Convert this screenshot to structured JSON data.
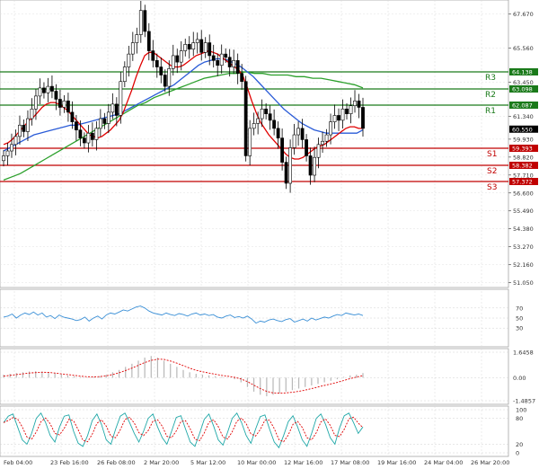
{
  "chart_data": {
    "type": "candlestick",
    "price_axis": {
      "ylim": [
        50.97,
        68.1
      ],
      "ticks": [
        "67.670",
        "65.560",
        "63.450",
        "61.340",
        "59.930",
        "58.820",
        "57.710",
        "56.600",
        "55.490",
        "54.380",
        "53.270",
        "52.160",
        "51.050"
      ]
    },
    "x_ticks": [
      "Feb 04:00",
      "23 Feb 16:00",
      "26 Feb 08:00",
      "2 Mar 20:00",
      "5 Mar 12:00",
      "10 Mar 00:00",
      "12 Mar 16:00",
      "17 Mar 08:00",
      "19 Mar 16:00",
      "24 Mar 04:00",
      "26 Mar 20:00"
    ],
    "levels": [
      {
        "name": "R3",
        "value": 64.138,
        "label": "64.138",
        "color": "#1a7a1a"
      },
      {
        "name": "R2",
        "value": 63.098,
        "label": "63.098",
        "color": "#1a7a1a"
      },
      {
        "name": "R1",
        "value": 62.087,
        "label": "62.087",
        "color": "#1a7a1a"
      },
      {
        "name": "S1",
        "value": 59.393,
        "label": "59.393",
        "color": "#c00000"
      },
      {
        "name": "S2",
        "value": 58.382,
        "label": "58.382",
        "color": "#c00000"
      },
      {
        "name": "S3",
        "value": 57.372,
        "label": "57.372",
        "color": "#c00000"
      }
    ],
    "current_price": "60.550",
    "closes": [
      58.9,
      59.2,
      59.6,
      60.1,
      60.8,
      60.4,
      61.2,
      61.8,
      62.6,
      63.1,
      62.8,
      63.2,
      62.9,
      62.4,
      61.9,
      62.3,
      61.6,
      61.0,
      60.5,
      60.0,
      59.7,
      60.3,
      59.9,
      60.6,
      61.2,
      60.9,
      61.6,
      62.1,
      61.4,
      63.5,
      64.4,
      65.2,
      65.9,
      66.4,
      67.9,
      66.6,
      65.4,
      64.8,
      64.4,
      63.9,
      63.2,
      64.3,
      65.1,
      64.7,
      65.4,
      65.8,
      65.5,
      65.9,
      66.1,
      65.3,
      65.9,
      65.1,
      64.8,
      64.5,
      65.2,
      65.0,
      64.4,
      64.8,
      64.0,
      63.5,
      58.9,
      60.6,
      60.9,
      61.2,
      61.8,
      61.5,
      61.1,
      60.6,
      60.0,
      58.5,
      57.2,
      59.4,
      60.2,
      60.6,
      59.9,
      58.9,
      57.7,
      58.8,
      59.6,
      59.8,
      60.2,
      61.0,
      61.4,
      61.1,
      61.8,
      61.5,
      62.0,
      62.3,
      61.9,
      60.6
    ],
    "sma_fast": [
      59.6,
      59.7,
      59.9,
      60.2,
      60.5,
      60.8,
      61.1,
      61.3,
      61.6,
      61.9,
      62.1,
      62.2,
      62.2,
      62.1,
      61.9,
      61.7,
      61.4,
      61.1,
      60.8,
      60.5,
      60.2,
      60.1,
      60.0,
      60.1,
      60.3,
      60.5,
      60.8,
      61.1,
      61.6,
      62.3,
      63.0,
      63.8,
      64.5,
      65.1,
      65.3,
      65.3,
      65.1,
      64.9,
      64.7,
      64.5,
      64.4,
      64.4,
      64.5,
      64.7,
      64.9,
      65.1,
      65.2,
      65.3,
      65.4,
      65.3,
      65.2,
      65.0,
      64.8,
      64.6,
      64.4,
      64.2,
      63.8,
      63.1,
      62.3,
      61.6,
      61.0,
      60.6,
      60.2,
      59.9,
      59.6,
      59.3,
      59.0,
      58.8,
      58.7,
      58.7,
      58.8,
      59.0,
      59.2,
      59.4,
      59.5,
      59.6,
      59.8,
      60.0,
      60.2,
      60.4,
      60.6,
      60.7,
      60.7,
      60.6,
      60.6
    ],
    "sma_mid": [
      59.2,
      59.4,
      59.6,
      59.8,
      60.0,
      60.2,
      60.3,
      60.4,
      60.5,
      60.6,
      60.7,
      60.8,
      60.8,
      60.9,
      61.0,
      61.1,
      61.2,
      61.3,
      61.4,
      61.5,
      61.7,
      61.9,
      62.1,
      62.3,
      62.5,
      62.7,
      62.9,
      63.1,
      63.3,
      63.6,
      63.9,
      64.2,
      64.5,
      64.7,
      64.8,
      64.9,
      64.9,
      64.8,
      64.6,
      64.4,
      64.1,
      63.8,
      63.4,
      63.0,
      62.6,
      62.2,
      61.8,
      61.5,
      61.2,
      60.9,
      60.7,
      60.5,
      60.4,
      60.3,
      60.3,
      60.3,
      60.3,
      60.3,
      60.3,
      60.5
    ],
    "sma_slow": [
      57.4,
      57.6,
      57.8,
      58.1,
      58.4,
      58.7,
      59.0,
      59.3,
      59.6,
      59.9,
      60.2,
      60.5,
      60.8,
      61.1,
      61.4,
      61.7,
      62.0,
      62.2,
      62.5,
      62.7,
      62.9,
      63.1,
      63.3,
      63.5,
      63.7,
      63.8,
      63.9,
      64.0,
      64.0,
      64.1,
      64.0,
      64.0,
      63.9,
      63.9,
      63.9,
      63.8,
      63.8,
      63.7,
      63.7,
      63.6,
      63.5,
      63.4,
      63.3,
      63.1
    ],
    "rsi": {
      "ylim": [
        0,
        100
      ],
      "ticks": [
        "70",
        "50",
        "30"
      ],
      "values": [
        52,
        54,
        58,
        50,
        56,
        60,
        57,
        62,
        56,
        60,
        52,
        55,
        49,
        56,
        52,
        50,
        48,
        45,
        47,
        52,
        44,
        50,
        54,
        48,
        56,
        60,
        58,
        62,
        66,
        64,
        68,
        72,
        74,
        70,
        64,
        60,
        58,
        56,
        60,
        57,
        55,
        59,
        57,
        54,
        58,
        60,
        56,
        58,
        55,
        57,
        52,
        50,
        54,
        56,
        51,
        53,
        50,
        54,
        48,
        40,
        44,
        42,
        46,
        48,
        45,
        43,
        47,
        49,
        42,
        45,
        48,
        44,
        50,
        46,
        49,
        52,
        50,
        54,
        57,
        55,
        60,
        58,
        56,
        58,
        55
      ]
    },
    "macd": {
      "ylim": [
        -1.4857,
        1.6458
      ],
      "ticks": [
        "1.6458",
        "0.00",
        "-1.4857"
      ],
      "hist": [
        0.2,
        0.25,
        0.3,
        0.35,
        0.4,
        0.42,
        0.4,
        0.35,
        0.3,
        0.22,
        0.15,
        0.1,
        0.05,
        0,
        0.05,
        0.1,
        0.2,
        0.35,
        0.5,
        0.7,
        0.9,
        1.1,
        1.3,
        1.4,
        1.3,
        1.1,
        0.9,
        0.7,
        0.5,
        0.35,
        0.25,
        0.2,
        0.15,
        0.1,
        0.05,
        0,
        -0.1,
        -0.3,
        -0.6,
        -0.9,
        -1.1,
        -1.2,
        -1.1,
        -1.0,
        -0.9,
        -0.8,
        -0.7,
        -0.6,
        -0.5,
        -0.4,
        -0.3,
        -0.2,
        -0.1,
        0.05,
        0.15,
        0.2,
        0.3
      ],
      "signal": [
        0.1,
        0.15,
        0.2,
        0.25,
        0.3,
        0.33,
        0.35,
        0.34,
        0.3,
        0.25,
        0.2,
        0.15,
        0.1,
        0.06,
        0.05,
        0.07,
        0.12,
        0.2,
        0.32,
        0.46,
        0.62,
        0.8,
        0.98,
        1.12,
        1.2,
        1.18,
        1.08,
        0.94,
        0.78,
        0.62,
        0.48,
        0.38,
        0.3,
        0.22,
        0.15,
        0.09,
        0.02,
        -0.08,
        -0.25,
        -0.48,
        -0.7,
        -0.88,
        -0.98,
        -1.0,
        -0.98,
        -0.94,
        -0.88,
        -0.8,
        -0.7,
        -0.6,
        -0.5,
        -0.4,
        -0.3,
        -0.18,
        -0.06,
        0.04,
        0.14
      ]
    },
    "stoch": {
      "ylim": [
        0,
        100
      ],
      "ticks": [
        "100",
        "80",
        "20",
        "0"
      ],
      "k": [
        70,
        85,
        90,
        60,
        30,
        20,
        45,
        80,
        92,
        70,
        40,
        25,
        60,
        85,
        88,
        50,
        22,
        15,
        40,
        75,
        90,
        65,
        30,
        20,
        55,
        85,
        92,
        70,
        45,
        25,
        50,
        80,
        90,
        60,
        35,
        20,
        50,
        82,
        86,
        55,
        25,
        15,
        45,
        78,
        90,
        62,
        30,
        18,
        48,
        80,
        92,
        70,
        40,
        22,
        55,
        84,
        88,
        55,
        25,
        12,
        40,
        72,
        86,
        60,
        30,
        15,
        45,
        80,
        90,
        66,
        35,
        20,
        58,
        86,
        92,
        70,
        45,
        60
      ]
    }
  }
}
